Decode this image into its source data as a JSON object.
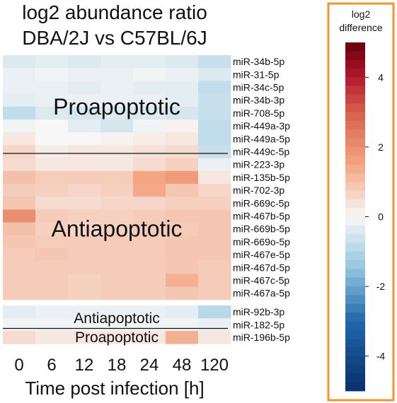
{
  "chart_data": {
    "type": "heatmap",
    "title_lines": [
      "log2 abundance ratio",
      "DBA/2J vs C57BL/6J"
    ],
    "xlabel": "Time post infection [h]",
    "x_categories": [
      "0",
      "6",
      "12",
      "18",
      "24",
      "48",
      "120"
    ],
    "colorbar": {
      "title_lines": [
        "log2",
        "difference"
      ],
      "range": [
        -5,
        5
      ],
      "ticks": [
        "4",
        "2",
        "0",
        "-2",
        "-4"
      ],
      "tick_values": [
        4,
        2,
        0,
        -2,
        -4
      ],
      "colors": {
        "low": "#08306b",
        "mid": "#f7f7f7",
        "high": "#67000d"
      },
      "frame_color": "#f0962f"
    },
    "groups": [
      {
        "label": "Proapoptotic",
        "rows": [
          {
            "name": "miR-34b-5p",
            "values": [
              -0.4,
              -0.3,
              -0.4,
              -0.3,
              -0.3,
              -0.4,
              -0.7
            ]
          },
          {
            "name": "miR-31-5p",
            "values": [
              -0.2,
              -0.1,
              -0.2,
              -0.2,
              -0.1,
              -0.2,
              -0.4
            ]
          },
          {
            "name": "miR-34c-5p",
            "values": [
              -0.2,
              -0.2,
              -0.3,
              -0.2,
              -0.3,
              -0.3,
              -0.8
            ]
          },
          {
            "name": "miR-34b-3p",
            "values": [
              -0.3,
              -0.2,
              -0.2,
              -0.2,
              -0.2,
              -0.3,
              -0.7
            ]
          },
          {
            "name": "miR-708-5p",
            "values": [
              -0.8,
              -0.4,
              -0.5,
              -0.4,
              -0.4,
              -0.5,
              -0.7
            ]
          },
          {
            "name": "miR-449a-3p",
            "values": [
              -0.1,
              0.0,
              -0.3,
              -0.5,
              -0.1,
              0.1,
              -0.8
            ]
          },
          {
            "name": "miR-449a-5p",
            "values": [
              0.3,
              0.0,
              0.0,
              0.1,
              0.2,
              0.3,
              -0.8
            ]
          },
          {
            "name": "miR-449c-5p",
            "values": [
              0.6,
              0.2,
              0.3,
              0.3,
              0.4,
              0.5,
              -0.7
            ]
          }
        ]
      },
      {
        "label": "Antiapoptotic",
        "rows": [
          {
            "name": "miR-223-3p",
            "values": [
              0.5,
              0.3,
              0.3,
              0.3,
              0.5,
              0.7,
              -0.2
            ]
          },
          {
            "name": "miR-135b-5p",
            "values": [
              1.0,
              0.8,
              0.8,
              0.8,
              1.5,
              1.7,
              0.3
            ]
          },
          {
            "name": "miR-702-3p",
            "values": [
              0.8,
              0.7,
              0.6,
              0.7,
              1.4,
              0.9,
              0.6
            ]
          },
          {
            "name": "miR-669c-5p",
            "values": [
              0.9,
              0.5,
              0.5,
              0.6,
              0.6,
              0.7,
              0.7
            ]
          },
          {
            "name": "miR-467b-5p",
            "values": [
              2.0,
              0.8,
              0.7,
              0.7,
              0.8,
              0.9,
              0.9
            ]
          },
          {
            "name": "miR-669b-5p",
            "values": [
              1.0,
              0.7,
              0.6,
              0.7,
              0.8,
              0.8,
              0.9
            ]
          },
          {
            "name": "miR-669o-5p",
            "values": [
              0.9,
              0.8,
              0.8,
              0.8,
              0.8,
              0.9,
              0.9
            ]
          },
          {
            "name": "miR-467e-5p",
            "values": [
              0.8,
              0.9,
              0.8,
              0.8,
              0.8,
              0.9,
              0.9
            ]
          },
          {
            "name": "miR-467d-5p",
            "values": [
              0.8,
              0.8,
              0.8,
              0.8,
              0.8,
              0.9,
              0.8
            ]
          },
          {
            "name": "miR-467c-5p",
            "values": [
              0.8,
              0.8,
              0.7,
              0.8,
              0.8,
              1.3,
              0.8
            ]
          },
          {
            "name": "miR-467a-5p",
            "values": [
              0.8,
              0.8,
              0.7,
              0.8,
              0.8,
              0.9,
              0.8
            ]
          }
        ]
      },
      {
        "label": "Antiapoptotic",
        "rows": [
          {
            "name": "miR-92b-3p",
            "values": [
              -0.3,
              -0.2,
              -0.2,
              -0.2,
              -0.2,
              -0.3,
              -0.9
            ]
          },
          {
            "name": "miR-182-5p",
            "values": [
              -0.1,
              -0.1,
              -0.1,
              -0.1,
              -0.1,
              -0.1,
              -0.2
            ]
          }
        ]
      },
      {
        "label": "Proapoptotic",
        "rows": [
          {
            "name": "miR-196b-5p",
            "values": [
              0.5,
              0.3,
              0.3,
              0.3,
              0.3,
              1.3,
              0.3
            ]
          }
        ]
      }
    ],
    "grid": false
  }
}
